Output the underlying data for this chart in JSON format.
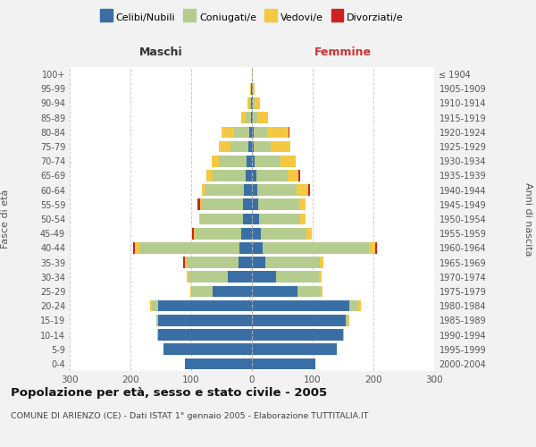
{
  "age_groups": [
    "0-4",
    "5-9",
    "10-14",
    "15-19",
    "20-24",
    "25-29",
    "30-34",
    "35-39",
    "40-44",
    "45-49",
    "50-54",
    "55-59",
    "60-64",
    "65-69",
    "70-74",
    "75-79",
    "80-84",
    "85-89",
    "90-94",
    "95-99",
    "100+"
  ],
  "birth_years": [
    "2000-2004",
    "1995-1999",
    "1990-1994",
    "1985-1989",
    "1980-1984",
    "1975-1979",
    "1970-1974",
    "1965-1969",
    "1960-1964",
    "1955-1959",
    "1950-1954",
    "1945-1949",
    "1940-1944",
    "1935-1939",
    "1930-1934",
    "1925-1929",
    "1920-1924",
    "1915-1919",
    "1910-1914",
    "1905-1909",
    "≤ 1904"
  ],
  "colors": {
    "celibi": "#3a6fa6",
    "coniugati": "#b5cc8e",
    "vedovi": "#f5c842",
    "divorziati": "#cc2222"
  },
  "males": {
    "celibi": [
      110,
      145,
      155,
      155,
      155,
      65,
      40,
      22,
      20,
      18,
      15,
      14,
      13,
      10,
      9,
      6,
      5,
      2,
      1,
      1,
      0
    ],
    "coniugati": [
      0,
      0,
      1,
      3,
      10,
      35,
      65,
      85,
      165,
      75,
      70,
      70,
      65,
      55,
      45,
      30,
      25,
      8,
      3,
      1,
      0
    ],
    "vedovi": [
      0,
      0,
      0,
      0,
      3,
      2,
      2,
      3,
      8,
      2,
      2,
      2,
      5,
      10,
      12,
      18,
      20,
      8,
      3,
      1,
      0
    ],
    "divorziati": [
      0,
      0,
      0,
      0,
      0,
      0,
      0,
      3,
      3,
      3,
      0,
      3,
      0,
      0,
      0,
      0,
      0,
      0,
      0,
      0,
      0
    ]
  },
  "females": {
    "celibi": [
      105,
      140,
      150,
      155,
      160,
      75,
      40,
      22,
      18,
      15,
      12,
      10,
      9,
      7,
      5,
      3,
      3,
      2,
      1,
      1,
      0
    ],
    "coniugati": [
      0,
      0,
      1,
      4,
      15,
      38,
      70,
      90,
      175,
      75,
      68,
      68,
      65,
      52,
      42,
      28,
      22,
      7,
      4,
      1,
      0
    ],
    "vedovi": [
      0,
      0,
      0,
      2,
      5,
      3,
      5,
      5,
      10,
      8,
      8,
      10,
      18,
      18,
      25,
      32,
      35,
      18,
      8,
      3,
      1
    ],
    "divorziati": [
      0,
      0,
      0,
      0,
      0,
      0,
      0,
      0,
      3,
      0,
      0,
      0,
      3,
      2,
      0,
      0,
      2,
      0,
      0,
      0,
      0
    ]
  },
  "xlim": 300,
  "title": "Popolazione per età, sesso e stato civile - 2005",
  "subtitle": "COMUNE DI ARIENZO (CE) - Dati ISTAT 1° gennaio 2005 - Elaborazione TUTTITALIA.IT",
  "ylabel_left": "Fasce di età",
  "ylabel_right": "Anni di nascita",
  "xlabel_left": "Maschi",
  "xlabel_right": "Femmine",
  "bg_color": "#f2f2f2",
  "plot_bg": "#ffffff",
  "legend_labels": [
    "Celibi/Nubili",
    "Coniugati/e",
    "Vedovi/e",
    "Divorziati/e"
  ]
}
